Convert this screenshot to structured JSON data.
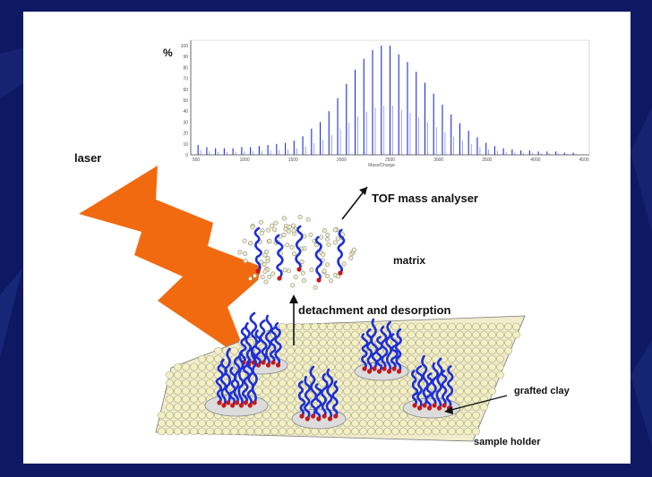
{
  "colors": {
    "background": "#0d1a63",
    "panel": "#ffffff",
    "spectrum": "#1f2fd6",
    "laser": "#f26a10",
    "chain": "#1c2fd8",
    "end_group": "#c41a1a",
    "particle": "#f3f0c6"
  },
  "labels": {
    "laser": "laser",
    "tof": "TOF mass analyser",
    "matrix": "matrix",
    "detachment": "detachment and desorption",
    "grafted_clay": "grafted clay",
    "sample_holder": "sample holder"
  },
  "chart_data": {
    "type": "bar",
    "ylabel": "%",
    "xlabel": "Mass/Charge",
    "xlim": [
      500,
      4500
    ],
    "ylim": [
      0,
      100
    ],
    "x_ticks": [
      "500",
      "1000",
      "1500",
      "2000",
      "2500",
      "3000",
      "3500",
      "4000",
      "4500"
    ],
    "y_ticks": [
      "0",
      "10",
      "20",
      "30",
      "40",
      "50",
      "60",
      "70",
      "80",
      "90",
      "100"
    ],
    "x": [
      520,
      610,
      700,
      790,
      880,
      970,
      1060,
      1150,
      1240,
      1330,
      1420,
      1510,
      1600,
      1690,
      1780,
      1870,
      1960,
      2050,
      2140,
      2230,
      2320,
      2410,
      2500,
      2590,
      2680,
      2770,
      2860,
      2950,
      3040,
      3130,
      3220,
      3310,
      3400,
      3490,
      3580,
      3670,
      3760,
      3850,
      3940,
      4030,
      4120,
      4210,
      4300,
      4390
    ],
    "values": [
      9,
      7,
      6,
      6,
      6,
      7,
      7,
      8,
      9,
      10,
      11,
      13,
      17,
      24,
      30,
      40,
      52,
      65,
      78,
      88,
      96,
      100,
      100,
      92,
      85,
      76,
      66,
      56,
      46,
      37,
      29,
      22,
      16,
      11,
      8,
      6,
      5,
      4,
      4,
      3,
      3,
      3,
      2,
      2
    ]
  }
}
